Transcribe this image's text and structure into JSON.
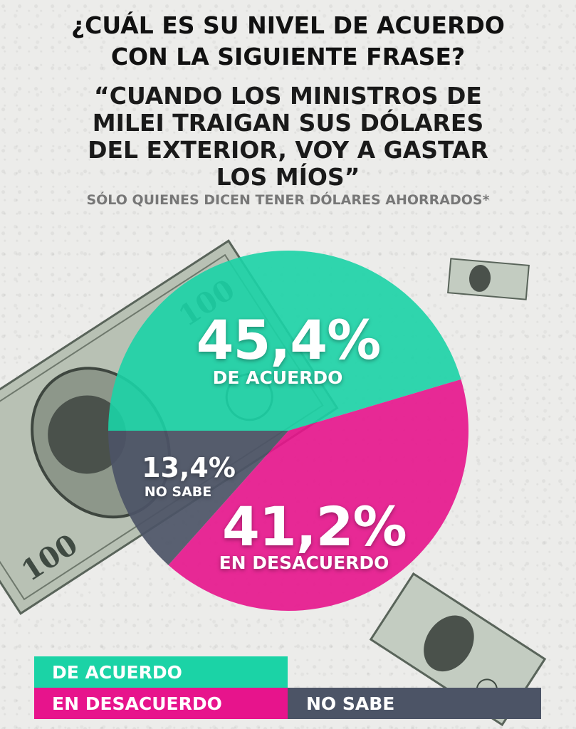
{
  "title_lines": [
    "¿CUÁL ES SU NIVEL DE ACUERDO",
    "CON LA SIGUIENTE FRASE?"
  ],
  "quote_lines": [
    "“CUANDO LOS MINISTROS DE",
    "MILEI TRAIGAN SUS DÓLARES",
    "DEL EXTERIOR, VOY A GASTAR",
    "LOS MÍOS”"
  ],
  "subtitle": "SÓLO QUIENES DICEN TENER DÓLARES AHORRADOS*",
  "colors": {
    "acuerdo": "#1bd3a6",
    "desacuerdo": "#e7148c",
    "no_sabe": "#4c5466"
  },
  "chart_data": {
    "type": "pie",
    "slices": [
      {
        "name": "DE ACUERDO",
        "value": 45.4,
        "label": "45,4%",
        "sublabel": "DE ACUERDO",
        "color": "#1bd3a6"
      },
      {
        "name": "EN DESACUERDO",
        "value": 41.2,
        "label": "41,2%",
        "sublabel": "EN DESACUERDO",
        "color": "#e7148c"
      },
      {
        "name": "NO SABE",
        "value": 13.4,
        "label": "13,4%",
        "sublabel": "NO SABE",
        "color": "#4c5466"
      }
    ],
    "legend": [
      "DE ACUERDO",
      "EN DESACUERDO",
      "NO SABE"
    ],
    "legend_placement": "bottom"
  }
}
